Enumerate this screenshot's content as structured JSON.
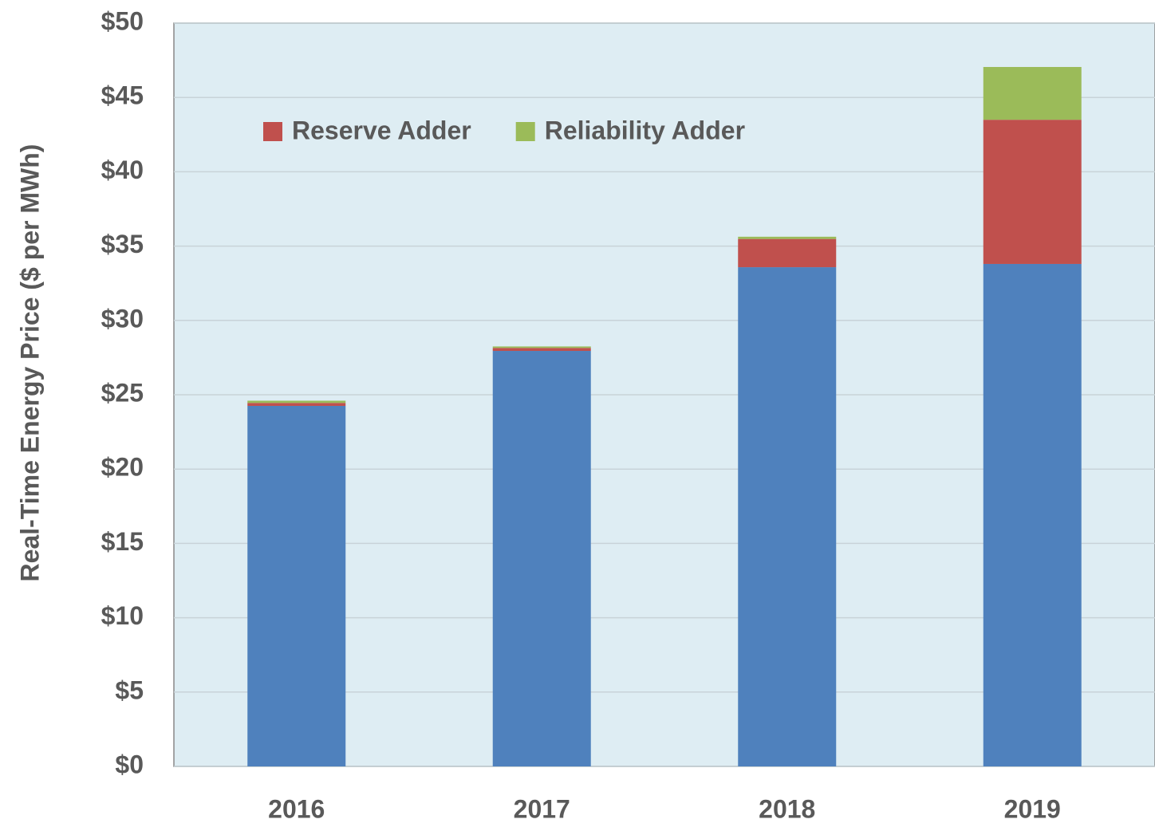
{
  "chart_data": {
    "type": "stacked_bar",
    "y_label": "Real-Time Energy Price ($ per MWh)",
    "categories": [
      "2016",
      "2017",
      "2018",
      "2019"
    ],
    "series": [
      {
        "color": "#4f81bd",
        "values": [
          24.25,
          27.95,
          33.58,
          33.8
        ]
      },
      {
        "name": "Reserve Adder",
        "color": "#c0504d",
        "values": [
          0.2,
          0.2,
          1.9,
          9.7
        ]
      },
      {
        "name": "Reliability Adder",
        "color": "#9bbb59",
        "values": [
          0.15,
          0.1,
          0.15,
          3.55
        ]
      }
    ],
    "ylim": [
      0,
      50
    ],
    "yticks": [
      {
        "value": 0,
        "label": "$0"
      },
      {
        "value": 5,
        "label": "$5"
      },
      {
        "value": 10,
        "label": "$10"
      },
      {
        "value": 15,
        "label": "$15"
      },
      {
        "value": 20,
        "label": "$20"
      },
      {
        "value": 25,
        "label": "$25"
      },
      {
        "value": 30,
        "label": "$30"
      },
      {
        "value": 35,
        "label": "$35"
      },
      {
        "value": 40,
        "label": "$40"
      },
      {
        "value": 45,
        "label": "$45"
      },
      {
        "value": 50,
        "label": "$50"
      }
    ],
    "grid": true,
    "legend": "top-left"
  }
}
